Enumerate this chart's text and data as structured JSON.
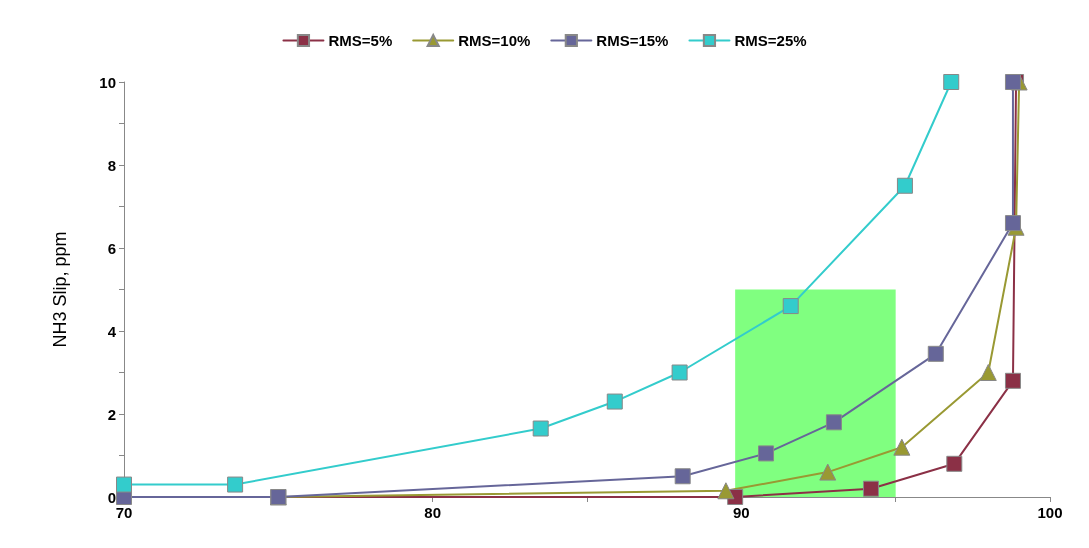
{
  "chart_data": {
    "type": "line",
    "ylabel": "NH3 Slip, ppm",
    "xlim": [
      70,
      100
    ],
    "xticks": [
      70,
      {
        "value": 75,
        "label": null
      },
      80,
      {
        "value": 85,
        "label": null
      },
      90,
      {
        "value": 95,
        "label": null
      },
      100
    ],
    "ylim": [
      0,
      10
    ],
    "yticks": [
      0,
      {
        "value": 1,
        "label": null
      },
      2,
      {
        "value": 3,
        "label": null
      },
      4,
      {
        "value": 5,
        "label": null
      },
      6,
      {
        "value": 7,
        "label": null
      },
      8,
      {
        "value": 9,
        "label": null
      },
      10
    ],
    "grid": false,
    "legend": "top",
    "line_style": "solid",
    "series": [
      {
        "type": "area",
        "color": "#80ff80",
        "marker": "none",
        "x": [
          89.8,
          95
        ],
        "values": [
          5,
          5
        ]
      },
      {
        "name": "RMS=5%",
        "color": "#8b3046",
        "marker": "square",
        "x": [
          75,
          89.8,
          94.2,
          96.9,
          98.8,
          98.9
        ],
        "values": [
          0,
          0,
          0.2,
          0.8,
          2.8,
          10
        ]
      },
      {
        "name": "RMS=10%",
        "color": "#999933",
        "marker": "triangle",
        "x": [
          75,
          89.5,
          92.8,
          95.2,
          98,
          98.9,
          99
        ],
        "values": [
          0,
          0.15,
          0.6,
          1.2,
          3,
          6.5,
          10
        ]
      },
      {
        "name": "RMS=15%",
        "color": "#666699",
        "marker": "square",
        "x": [
          70,
          75,
          88.1,
          90.8,
          93,
          96.3,
          98.8,
          98.8
        ],
        "values": [
          0,
          0,
          0.5,
          1.05,
          1.8,
          3.45,
          6.6,
          10
        ]
      },
      {
        "name": "RMS=25%",
        "color": "#33cccc",
        "marker": "square",
        "x": [
          70,
          73.6,
          83.5,
          85.9,
          88,
          91.6,
          95.3,
          96.8
        ],
        "values": [
          0.3,
          0.3,
          1.65,
          2.3,
          3,
          4.6,
          7.5,
          10
        ]
      }
    ]
  }
}
